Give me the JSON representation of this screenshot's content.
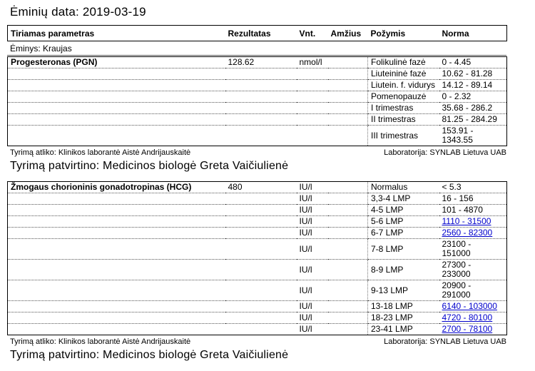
{
  "page": {
    "title": "Ėminių data: 2019-03-19",
    "specimen": "Ėminys: Kraujas"
  },
  "columns": {
    "parameter": "Tiriamas parametras",
    "result": "Rezultatas",
    "unit": "Vnt.",
    "age": "Amžius",
    "attribute": "Požymis",
    "norm": "Norma"
  },
  "footer": {
    "performed_by": "Tyrimą atliko: Klinikos laborantė Aistė Andrijauskaitė",
    "laboratory": "Laboratorija: SYNLAB Lietuva UAB",
    "confirmed_by": "Tyrimą patvirtino: Medicinos biologė Greta Vaičiulienė"
  },
  "colors": {
    "link": "#0000cc"
  },
  "tables": [
    {
      "parameter": "Progesteronas (PGN)",
      "result": "128.62",
      "rows": [
        {
          "unit": "nmol/l",
          "attribute": "Folikulinė fazė",
          "norm": "0 - 4.45",
          "link": false,
          "tall": false
        },
        {
          "unit": "",
          "attribute": "Liuteininė fazė",
          "norm": "10.62 - 81.28",
          "link": false,
          "tall": false
        },
        {
          "unit": "",
          "attribute": "Liutein. f. vidurys",
          "norm": "14.12 - 89.14",
          "link": false,
          "tall": false
        },
        {
          "unit": "",
          "attribute": "Pomenopauzė",
          "norm": "0 - 2.32",
          "link": false,
          "tall": false
        },
        {
          "unit": "",
          "attribute": "I trimestras",
          "norm": "35.68 - 286.2",
          "link": false,
          "tall": false
        },
        {
          "unit": "",
          "attribute": "II trimestras",
          "norm": "81.25 - 284.29",
          "link": false,
          "tall": false
        },
        {
          "unit": "",
          "attribute": "III trimestras",
          "norm": "153.91 - 1343.55",
          "link": false,
          "tall": true
        }
      ]
    },
    {
      "parameter": "Žmogaus chorioninis gonadotropinas (HCG)",
      "result": "480",
      "rows": [
        {
          "unit": "IU/l",
          "attribute": "Normalus",
          "norm": "< 5.3",
          "link": false,
          "tall": false
        },
        {
          "unit": "IU/l",
          "attribute": "3,3-4 LMP",
          "norm": "16 - 156",
          "link": false,
          "tall": false
        },
        {
          "unit": "IU/l",
          "attribute": "4-5 LMP",
          "norm": "101 - 4870",
          "link": false,
          "tall": false
        },
        {
          "unit": "IU/l",
          "attribute": "5-6 LMP",
          "norm": "1110 - 31500",
          "link": true,
          "tall": false
        },
        {
          "unit": "IU/l",
          "attribute": "6-7 LMP",
          "norm": "2560 - 82300",
          "link": true,
          "tall": false
        },
        {
          "unit": "IU/l",
          "attribute": "7-8 LMP",
          "norm": "23100 - 151000",
          "link": false,
          "tall": true
        },
        {
          "unit": "IU/l",
          "attribute": "8-9 LMP",
          "norm": "27300 - 233000",
          "link": false,
          "tall": true
        },
        {
          "unit": "IU/l",
          "attribute": "9-13 LMP",
          "norm": "20900 - 291000",
          "link": false,
          "tall": true
        },
        {
          "unit": "IU/l",
          "attribute": "13-18 LMP",
          "norm": "6140 - 103000",
          "link": true,
          "tall": false
        },
        {
          "unit": "IU/l",
          "attribute": "18-23 LMP",
          "norm": "4720 - 80100",
          "link": true,
          "tall": false
        },
        {
          "unit": "IU/l",
          "attribute": "23-41 LMP",
          "norm": "2700 - 78100",
          "link": true,
          "tall": false
        }
      ]
    }
  ]
}
